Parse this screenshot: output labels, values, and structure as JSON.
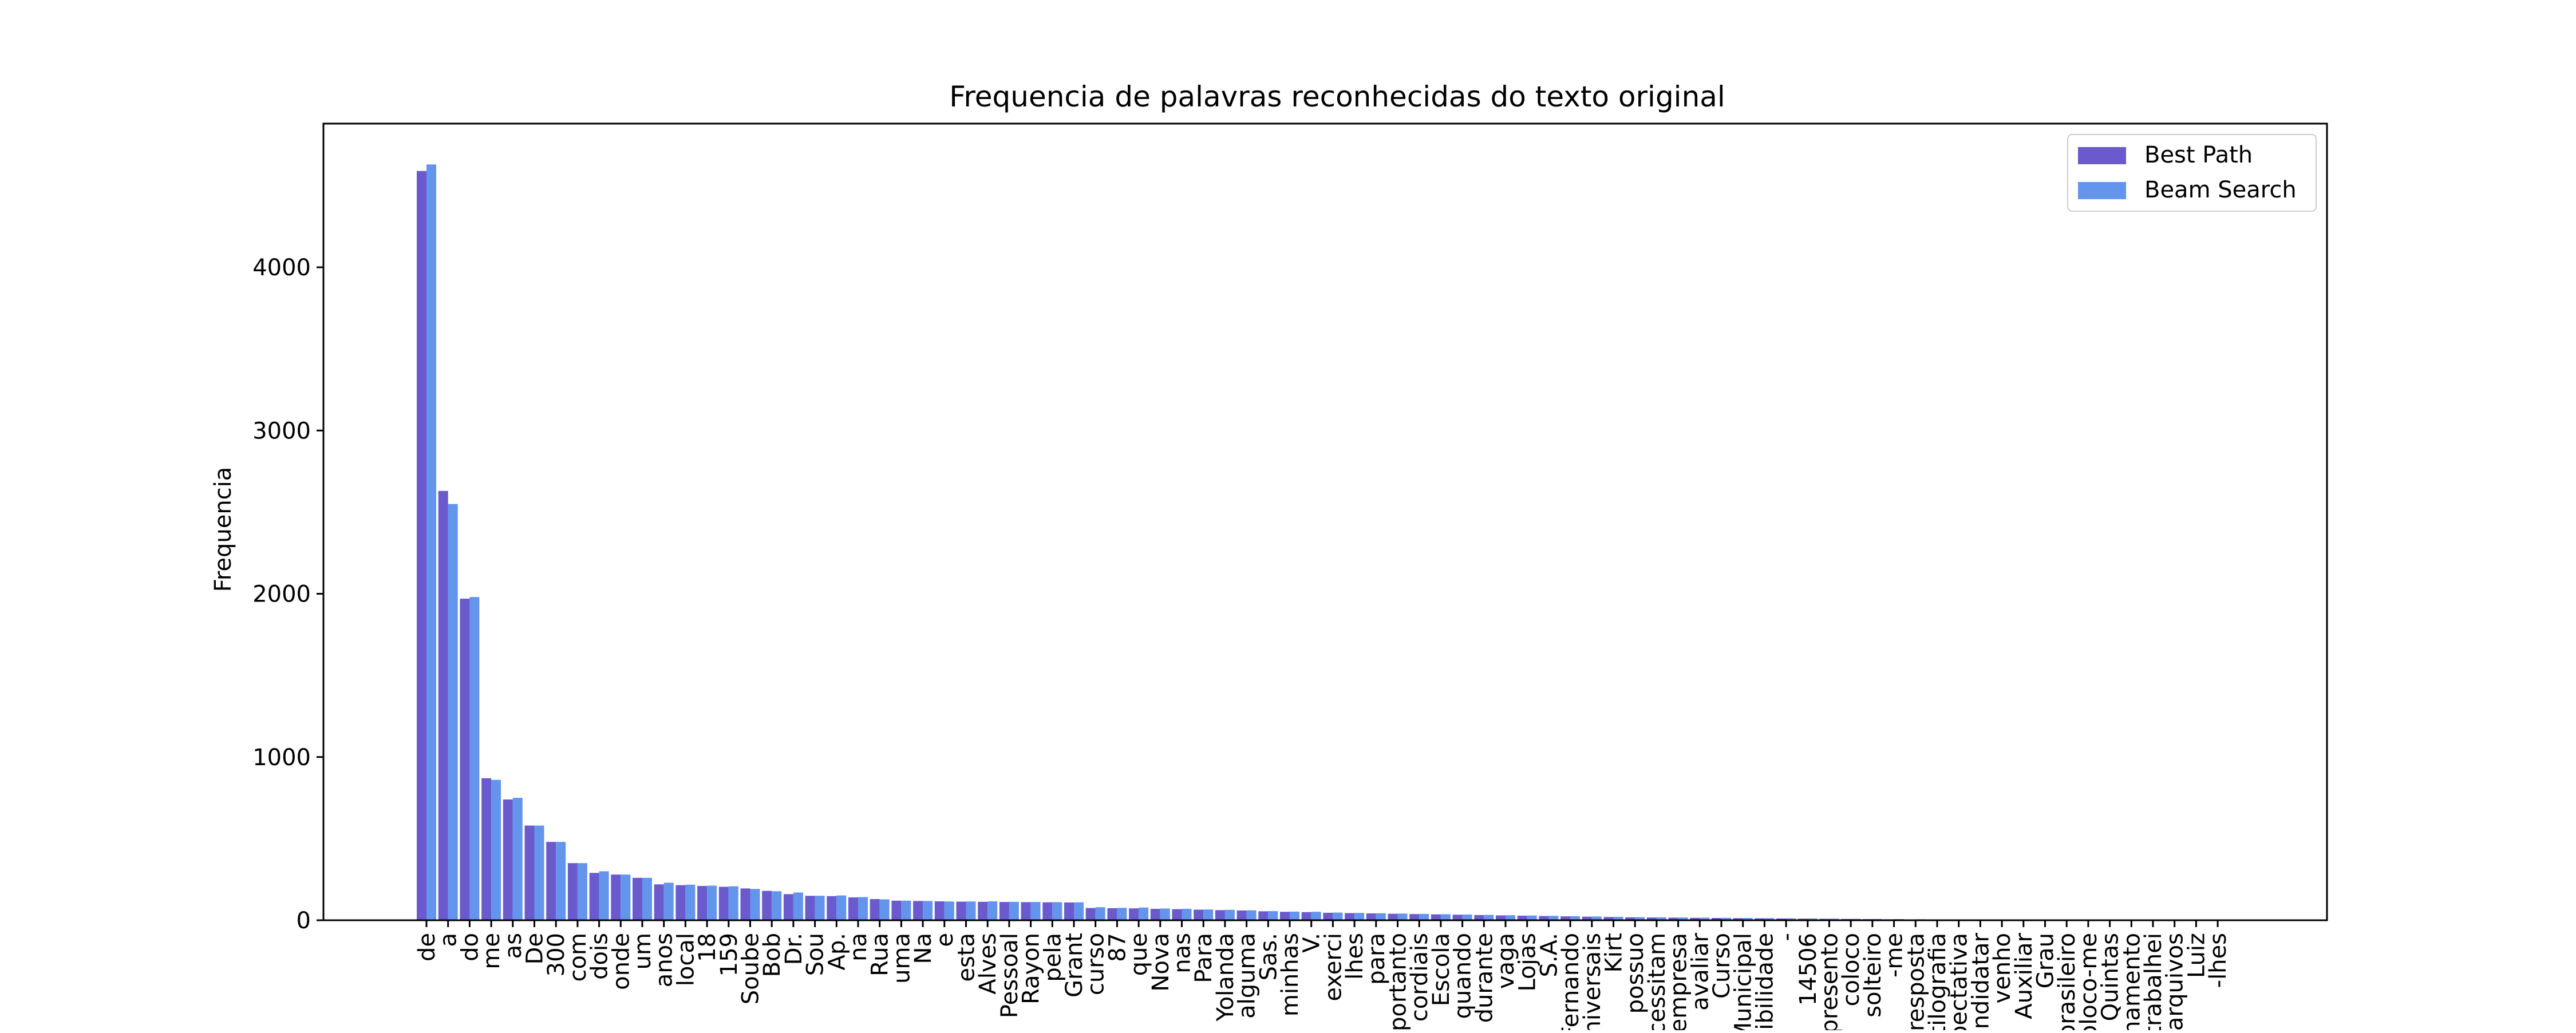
{
  "chart_data": {
    "type": "bar",
    "title": "Frequencia de palavras reconhecidas do texto original",
    "xlabel": "",
    "ylabel": "Frequencia",
    "ylim": [
      0,
      4880
    ],
    "yticks": [
      0,
      1000,
      2000,
      3000,
      4000
    ],
    "legend_position": "top-right",
    "grid": false,
    "categories": [
      "de",
      "a",
      "do",
      "me",
      "as",
      "De",
      "300",
      "com",
      "dois",
      "onde",
      "um",
      "anos",
      "local",
      "18",
      "159",
      "Soube",
      "Bob",
      "Dr.",
      "Sou",
      "Ap.",
      "na",
      "Rua",
      "uma",
      "Na",
      "e",
      "esta",
      "Alves",
      "Pessoal",
      "Rayon",
      "pela",
      "Grant",
      "curso",
      "87",
      "que",
      "Nova",
      "nas",
      "Para",
      "Yolanda",
      "alguma",
      "Sas.",
      "minhas",
      "V.",
      "exerci",
      "lhes",
      "para",
      "importanto",
      "cordiais",
      "Escola",
      "quando",
      "durante",
      "vaga",
      "Lojas",
      "S.A.",
      "Fernando",
      "Universais",
      "Kirt",
      "possuo",
      "necessitam",
      "empresa",
      "avaliar",
      "Curso",
      "Municipal",
      "possibilidade",
      "-",
      "14506",
      "apresento",
      "coloco",
      "solteiro",
      "-me",
      "resposta",
      "datilografia",
      "expectativa",
      "candidatar",
      "venho",
      "Auxiliar",
      "Grau",
      "brasileiro",
      "coloco-me",
      "Quintas",
      "treinamento",
      "trabalhei",
      "arquivos",
      "Luiz",
      "-lhes"
    ],
    "series": [
      {
        "name": "Best Path",
        "color": "#6a5acd",
        "values": [
          4590,
          2630,
          1970,
          870,
          740,
          580,
          480,
          350,
          290,
          280,
          260,
          220,
          215,
          210,
          205,
          195,
          180,
          160,
          150,
          148,
          140,
          130,
          120,
          118,
          116,
          114,
          113,
          112,
          111,
          110,
          109,
          75,
          74,
          73,
          70,
          68,
          65,
          62,
          60,
          55,
          52,
          50,
          46,
          44,
          42,
          40,
          38,
          36,
          34,
          32,
          30,
          28,
          26,
          24,
          22,
          20,
          18,
          17,
          16,
          15,
          14,
          13,
          12,
          11,
          10,
          9,
          8,
          7,
          6,
          5,
          4,
          3,
          3,
          2,
          2,
          1,
          1,
          1,
          1,
          1,
          1,
          1,
          1,
          1
        ]
      },
      {
        "name": "Beam Search",
        "color": "#6495ed",
        "values": [
          4630,
          2550,
          1980,
          860,
          750,
          580,
          480,
          350,
          300,
          280,
          260,
          230,
          218,
          212,
          208,
          192,
          178,
          170,
          150,
          152,
          142,
          128,
          120,
          118,
          115,
          115,
          116,
          113,
          112,
          111,
          110,
          80,
          76,
          78,
          72,
          70,
          66,
          64,
          61,
          56,
          53,
          52,
          47,
          45,
          43,
          41,
          39,
          37,
          35,
          33,
          31,
          29,
          27,
          25,
          23,
          21,
          19,
          18,
          17,
          16,
          15,
          14,
          13,
          12,
          11,
          10,
          9,
          8,
          7,
          6,
          5,
          4,
          3,
          3,
          2,
          2,
          1,
          1,
          1,
          1,
          1,
          1,
          1,
          1
        ]
      }
    ]
  }
}
